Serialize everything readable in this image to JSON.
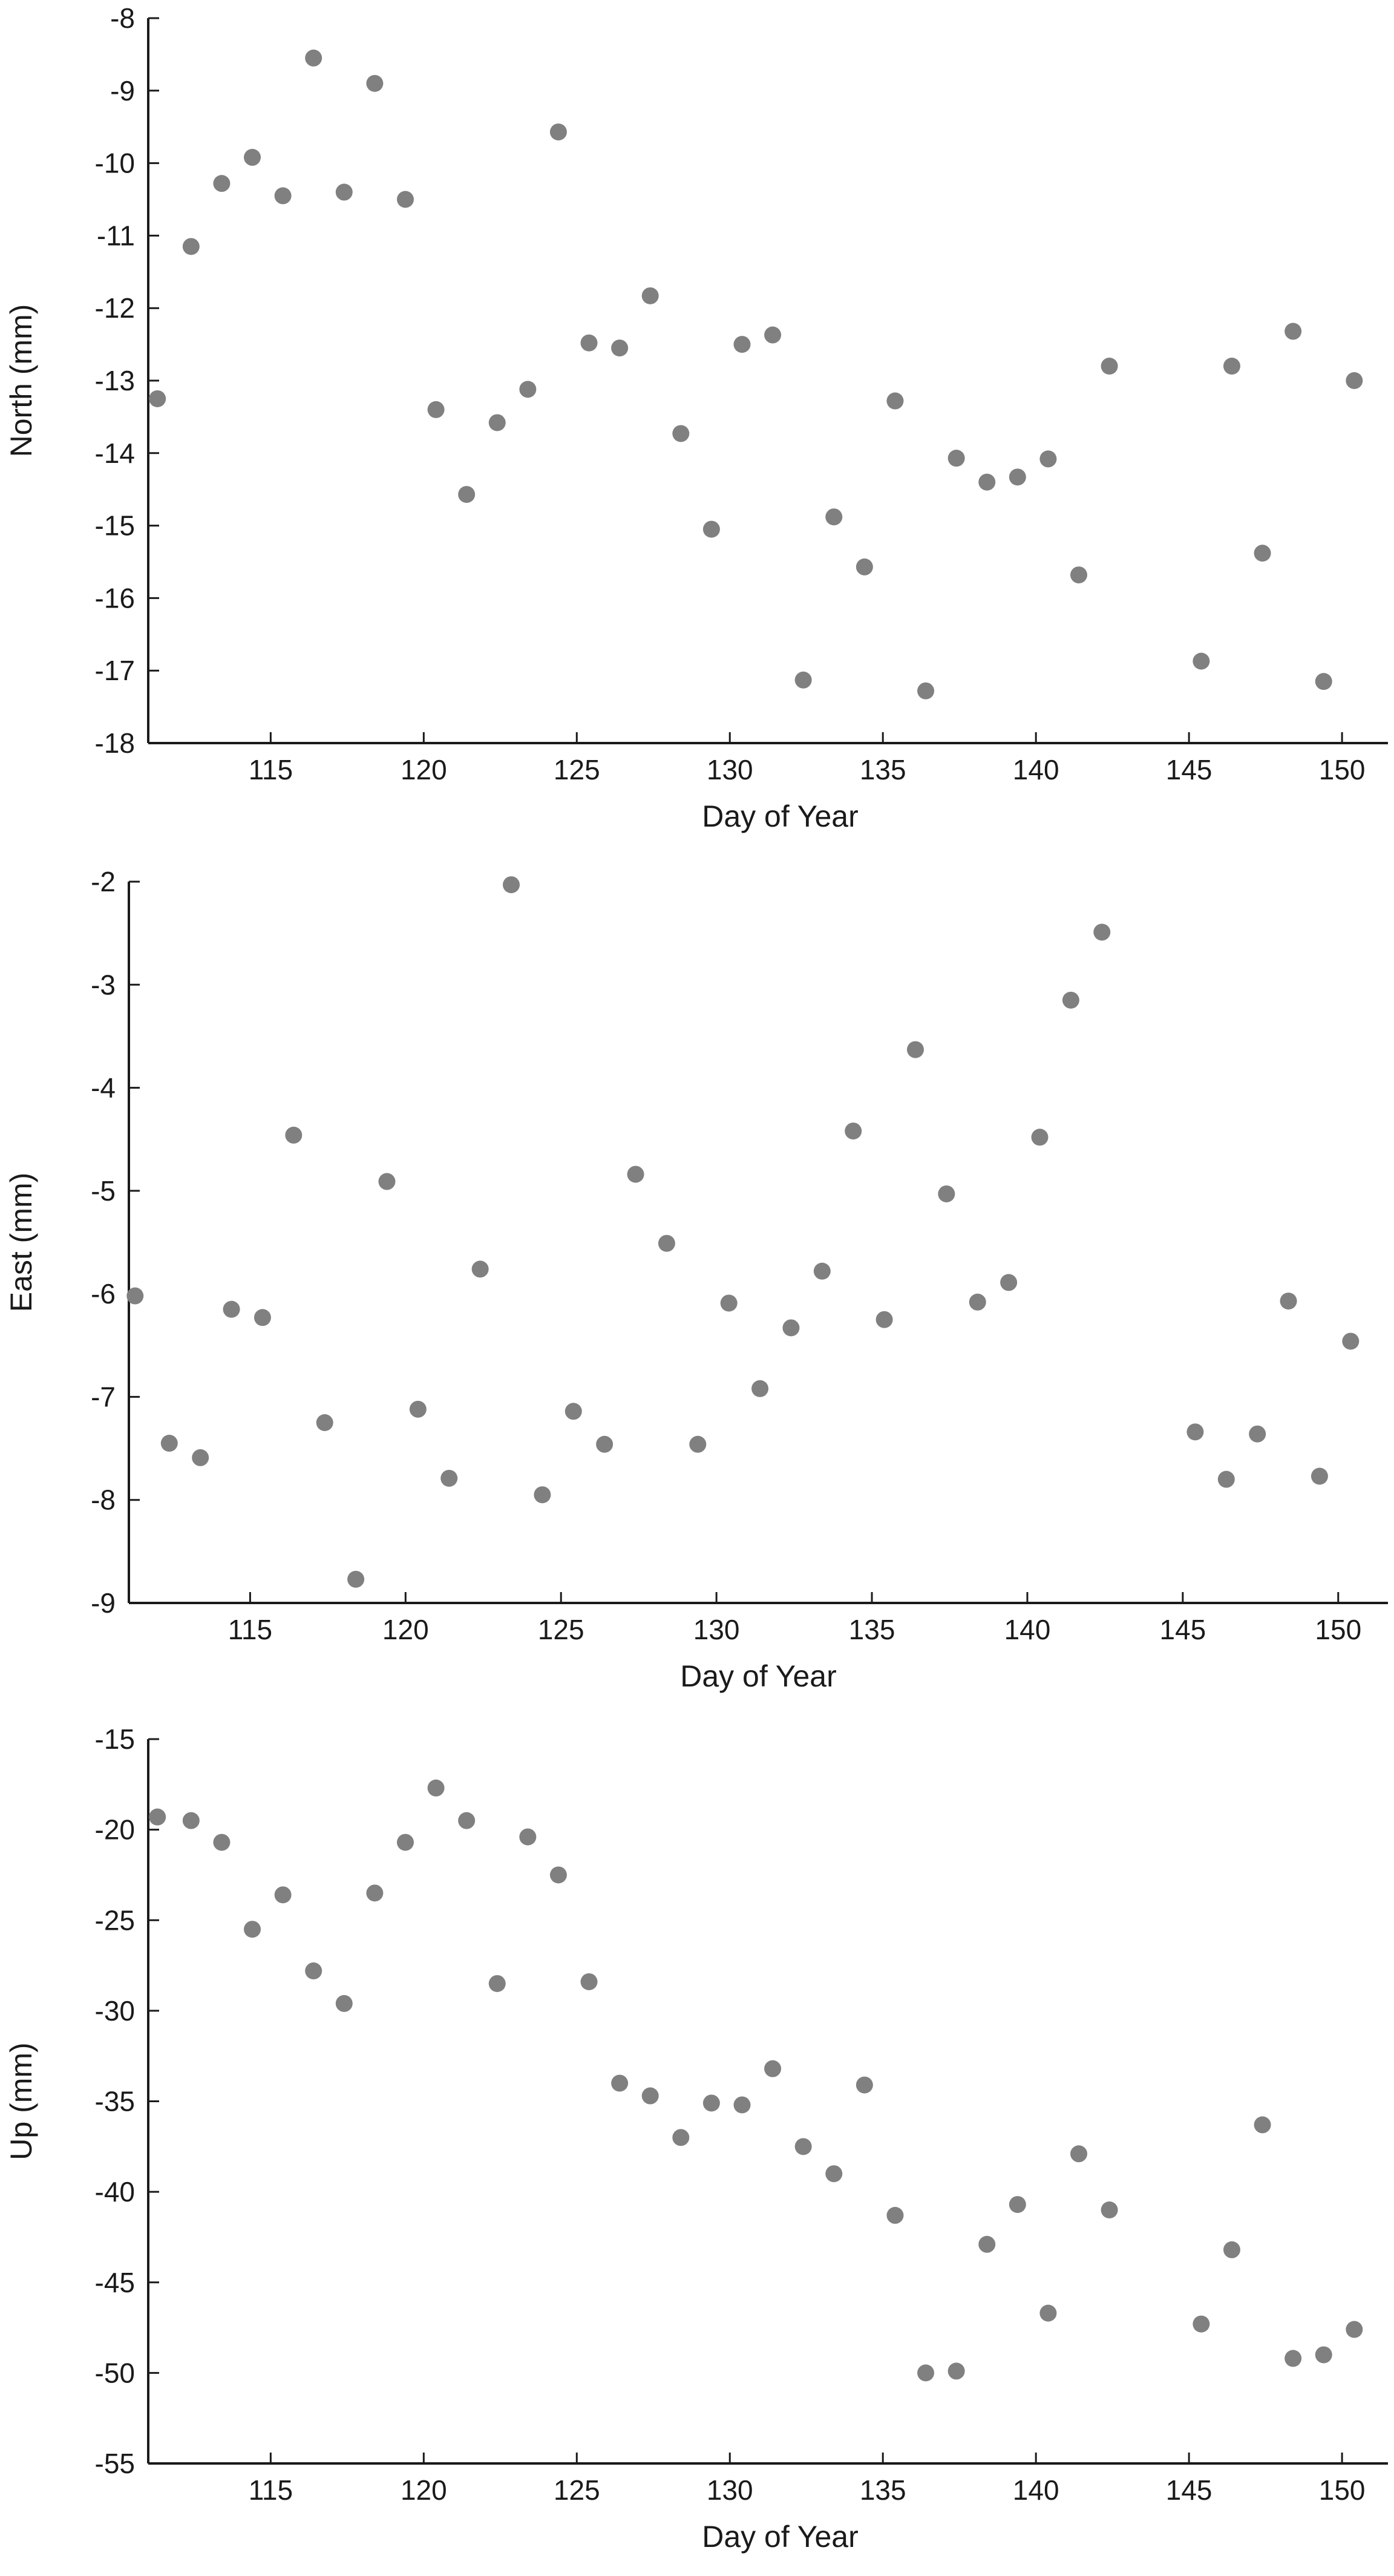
{
  "chart_data": [
    {
      "type": "scatter",
      "xlabel": "Day of Year",
      "ylabel": "North (mm)",
      "xlim": [
        111,
        151.5
      ],
      "ylim": [
        -18,
        -8
      ],
      "xticks": [
        115,
        120,
        125,
        130,
        135,
        140,
        145,
        150
      ],
      "yticks": [
        -18,
        -17,
        -16,
        -15,
        -14,
        -13,
        -12,
        -11,
        -10,
        -9,
        -8
      ],
      "grid": false,
      "color": "#808080",
      "x": [
        111.3,
        112.4,
        113.4,
        114.4,
        115.4,
        116.4,
        117.4,
        118.4,
        119.4,
        120.4,
        121.4,
        122.4,
        123.4,
        124.4,
        125.4,
        126.4,
        127.4,
        128.4,
        129.4,
        130.4,
        131.4,
        132.4,
        133.4,
        134.4,
        135.4,
        136.4,
        137.4,
        138.4,
        139.4,
        140.4,
        141.4,
        142.4,
        145.4,
        146.4,
        147.4,
        148.4,
        149.4,
        150.4
      ],
      "y": [
        -13.25,
        -11.15,
        -10.28,
        -9.92,
        -10.45,
        -8.55,
        -10.4,
        -8.9,
        -10.5,
        -13.4,
        -14.57,
        -13.58,
        -13.12,
        -9.57,
        -12.48,
        -12.55,
        -11.83,
        -13.73,
        -15.05,
        -12.5,
        -12.37,
        -17.13,
        -14.88,
        -15.57,
        -13.28,
        -17.28,
        -14.07,
        -14.4,
        -14.33,
        -14.08,
        -15.68,
        -12.8,
        -16.87,
        -12.8,
        -15.38,
        -12.32,
        -17.15,
        -13.0
      ]
    },
    {
      "type": "scatter",
      "xlabel": "Day of Year",
      "ylabel": "East (mm)",
      "xlim": [
        111.1,
        151.6
      ],
      "ylim": [
        -9,
        -2
      ],
      "xticks": [
        115,
        120,
        125,
        130,
        135,
        140,
        145,
        150
      ],
      "yticks": [
        -9,
        -8,
        -7,
        -6,
        -5,
        -4,
        -3,
        -2
      ],
      "grid": false,
      "color": "#808080",
      "x": [
        111.3,
        112.4,
        113.4,
        114.4,
        115.4,
        116.4,
        117.4,
        118.4,
        119.4,
        120.4,
        121.4,
        122.4,
        123.4,
        124.4,
        125.4,
        126.4,
        127.4,
        128.4,
        129.4,
        130.4,
        131.4,
        132.4,
        133.4,
        134.4,
        135.4,
        136.4,
        137.4,
        138.4,
        139.4,
        140.4,
        141.4,
        142.4,
        145.4,
        146.4,
        147.4,
        148.4,
        149.4,
        150.4
      ],
      "y": [
        -6.02,
        -7.45,
        -7.59,
        -6.15,
        -6.23,
        -4.46,
        -7.25,
        -8.77,
        -4.91,
        -7.12,
        -7.79,
        -5.76,
        -2.03,
        -7.95,
        -7.14,
        -7.46,
        -4.84,
        -5.51,
        -7.46,
        -6.09,
        -6.92,
        -6.33,
        -5.78,
        -4.42,
        -6.25,
        -3.63,
        -5.03,
        -6.08,
        -5.89,
        -4.48,
        -3.15,
        -2.49,
        -7.34,
        -7.8,
        -7.36,
        -6.07,
        -7.77,
        -6.46
      ]
    },
    {
      "type": "scatter",
      "xlabel": "Day of Year",
      "ylabel": "Up (mm)",
      "xlim": [
        111,
        151.5
      ],
      "ylim": [
        -55,
        -15
      ],
      "xticks": [
        115,
        120,
        125,
        130,
        135,
        140,
        145,
        150
      ],
      "yticks": [
        -55,
        -50,
        -45,
        -40,
        -35,
        -30,
        -25,
        -20,
        -15
      ],
      "grid": false,
      "color": "#808080",
      "x": [
        111.3,
        112.4,
        113.4,
        114.4,
        115.4,
        116.4,
        117.4,
        118.4,
        119.4,
        120.4,
        121.4,
        122.4,
        123.4,
        124.4,
        125.4,
        126.4,
        127.4,
        128.4,
        129.4,
        130.4,
        131.4,
        132.4,
        133.4,
        134.4,
        135.4,
        136.4,
        137.4,
        138.4,
        139.4,
        140.4,
        141.4,
        142.4,
        145.4,
        146.4,
        147.4,
        148.4,
        149.4,
        150.4
      ],
      "y": [
        -19.3,
        -19.5,
        -20.7,
        -25.5,
        -23.6,
        -27.8,
        -29.6,
        -23.5,
        -20.7,
        -17.7,
        -19.5,
        -28.5,
        -20.4,
        -22.5,
        -28.4,
        -34.0,
        -34.7,
        -37.0,
        -35.1,
        -35.2,
        -33.2,
        -37.5,
        -39.0,
        -34.1,
        -41.3,
        -50.0,
        -49.9,
        -42.9,
        -40.7,
        -46.7,
        -37.9,
        -41.0,
        -47.3,
        -43.2,
        -36.3,
        -49.2,
        -49.0,
        -47.6
      ]
    }
  ]
}
